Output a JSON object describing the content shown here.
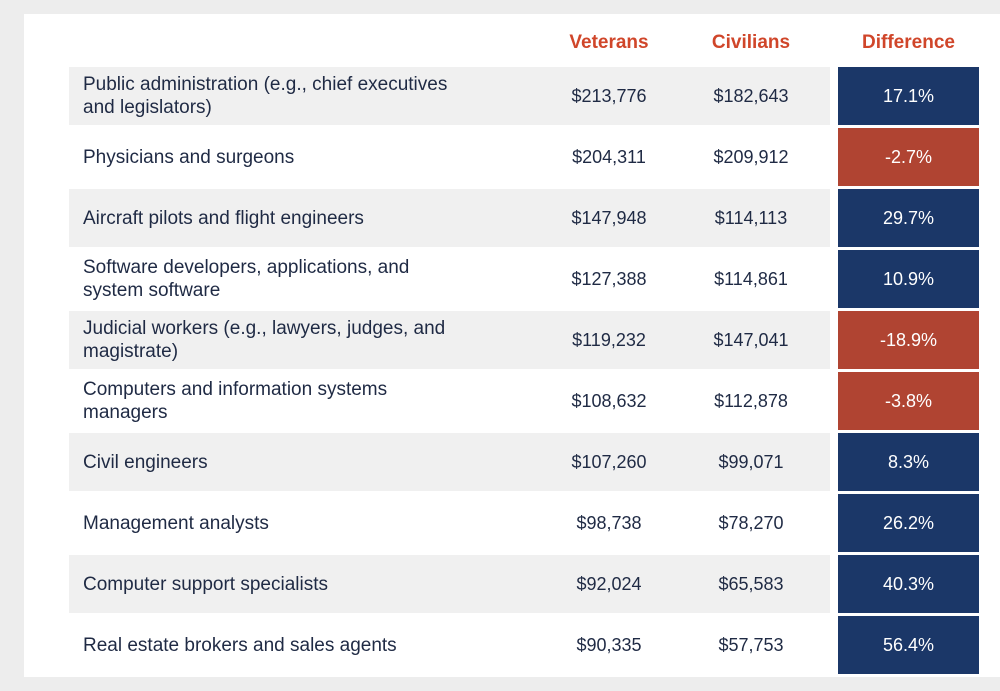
{
  "colors": {
    "header_text": "#d0462a",
    "positive_cell": "#1b3768",
    "negative_cell": "#b04432",
    "row_shade": "#f0f0f0",
    "text": "#1f2a44"
  },
  "chart_data": {
    "type": "table",
    "columns": [
      "",
      "Veterans",
      "Civilians",
      "Difference"
    ],
    "rows": [
      {
        "occupation": "Public administration (e.g., chief executives and legislators)",
        "veterans": "$213,776",
        "civilians": "$182,643",
        "difference": "17.1%",
        "difference_value": 17.1
      },
      {
        "occupation": "Physicians and surgeons",
        "veterans": "$204,311",
        "civilians": "$209,912",
        "difference": "-2.7%",
        "difference_value": -2.7
      },
      {
        "occupation": "Aircraft pilots and flight engineers",
        "veterans": "$147,948",
        "civilians": "$114,113",
        "difference": "29.7%",
        "difference_value": 29.7
      },
      {
        "occupation": "Software developers, applications, and system software",
        "veterans": "$127,388",
        "civilians": "$114,861",
        "difference": "10.9%",
        "difference_value": 10.9
      },
      {
        "occupation": "Judicial workers (e.g., lawyers, judges, and magistrate)",
        "veterans": "$119,232",
        "civilians": "$147,041",
        "difference": "-18.9%",
        "difference_value": -18.9
      },
      {
        "occupation": "Computers and information systems managers",
        "veterans": "$108,632",
        "civilians": "$112,878",
        "difference": "-3.8%",
        "difference_value": -3.8
      },
      {
        "occupation": "Civil engineers",
        "veterans": "$107,260",
        "civilians": "$99,071",
        "difference": "8.3%",
        "difference_value": 8.3
      },
      {
        "occupation": "Management analysts",
        "veterans": "$98,738",
        "civilians": "$78,270",
        "difference": "26.2%",
        "difference_value": 26.2
      },
      {
        "occupation": "Computer support specialists",
        "veterans": "$92,024",
        "civilians": "$65,583",
        "difference": "40.3%",
        "difference_value": 40.3
      },
      {
        "occupation": "Real estate brokers and sales agents",
        "veterans": "$90,335",
        "civilians": "$57,753",
        "difference": "56.4%",
        "difference_value": 56.4
      }
    ]
  }
}
